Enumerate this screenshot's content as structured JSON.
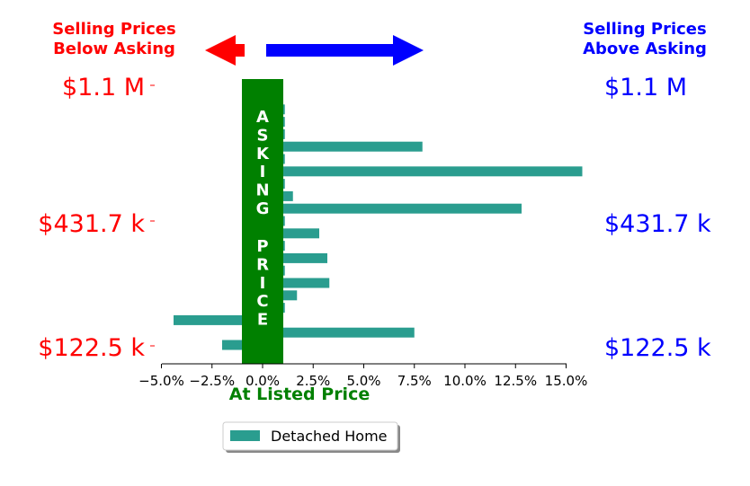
{
  "colors": {
    "below": "#ff0000",
    "above": "#0000ff",
    "bar": "#2a9d8f",
    "asking_band": "#008000",
    "at_listed": "#008000"
  },
  "header": {
    "below_line1": "Selling Prices",
    "below_line2": "Below Asking",
    "above_line1": "Selling Prices",
    "above_line2": "Above Asking"
  },
  "price_labels": {
    "left": [
      "$1.1 M",
      "$431.7 k",
      "$122.5 k"
    ],
    "right": [
      "$1.1 M",
      "$431.7 k",
      "$122.5 k"
    ]
  },
  "asking_band": {
    "word1": [
      "A",
      "S",
      "K",
      "I",
      "N",
      "G"
    ],
    "word2": [
      "P",
      "R",
      "I",
      "C",
      "E"
    ]
  },
  "at_listed_label": "At Listed Price",
  "chart_data": {
    "type": "bar",
    "orientation": "horizontal",
    "x_ticks": [
      -5.0,
      -2.5,
      0.0,
      2.5,
      5.0,
      7.5,
      10.0,
      12.5,
      15.0
    ],
    "x_tick_labels": [
      "−5.0%",
      "−2.5%",
      "0.0%",
      "2.5%",
      "5.0%",
      "7.5%",
      "10.0%",
      "12.5%",
      "15.0%"
    ],
    "xlim": [
      -5.0,
      16.0
    ],
    "series": [
      {
        "name": "Detached Home",
        "values": [
          -2.0,
          7.5,
          -4.4,
          1.1,
          1.7,
          3.3,
          1.1,
          3.2,
          1.1,
          2.8,
          1.1,
          12.8,
          1.5,
          1.1,
          15.8,
          1.1,
          7.9,
          1.1,
          1.1,
          1.1
        ]
      }
    ],
    "legend": {
      "placement": "bottom-center",
      "entries": [
        "Detached Home"
      ]
    }
  }
}
